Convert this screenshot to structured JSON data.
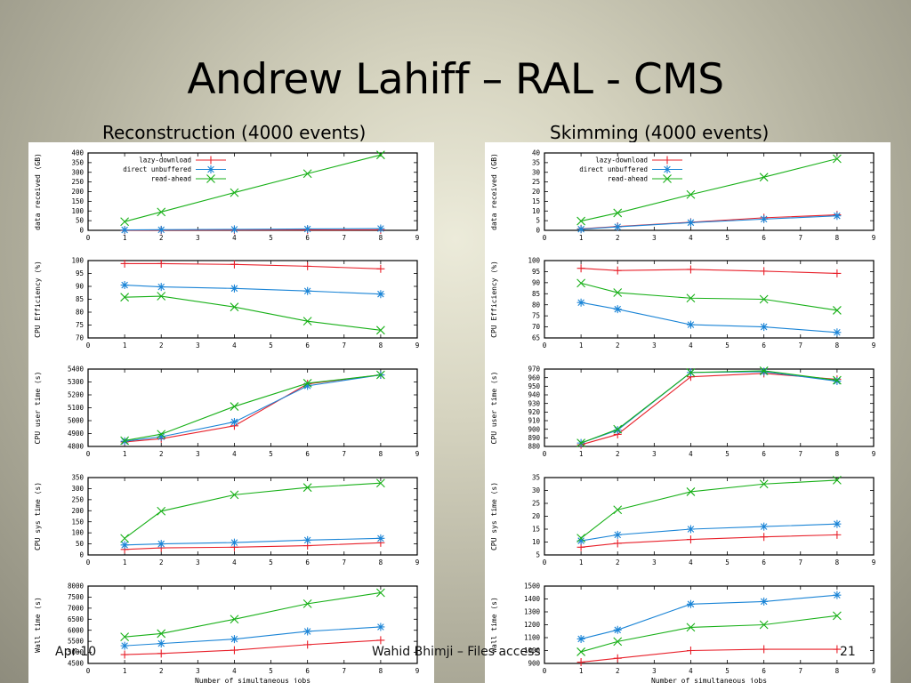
{
  "slide": {
    "title": "Andrew Lahiff – RAL - CMS",
    "subtitle_left": "Reconstruction (4000 events)",
    "subtitle_right": "Skimming (4000 events)",
    "footer_date": "Apr-10",
    "footer_center": "Wahid Bhimji – Files access",
    "footer_page": "21"
  },
  "colors": {
    "lazy_download": "#e8202a",
    "direct_unbuffered": "#1a84d6",
    "read_ahead": "#18b018"
  },
  "chart_data": [
    {
      "type": "line",
      "panel": "left",
      "x": [
        1,
        2,
        4,
        6,
        8
      ],
      "xlim": [
        0,
        9
      ],
      "xticks": [
        0,
        1,
        2,
        3,
        4,
        5,
        6,
        7,
        8,
        9
      ],
      "ylabel": "data received (GB)",
      "ylim": [
        0,
        400
      ],
      "yticks": [
        0,
        50,
        100,
        150,
        200,
        250,
        300,
        350,
        400
      ],
      "legend": "top-left",
      "series": [
        {
          "name": "lazy-download",
          "values": [
            0.3,
            0.6,
            1.2,
            1.8,
            2.4
          ]
        },
        {
          "name": "direct unbuffered",
          "values": [
            2,
            3,
            5,
            7,
            9
          ]
        },
        {
          "name": "read-ahead",
          "values": [
            45,
            95,
            195,
            293,
            390
          ]
        }
      ]
    },
    {
      "type": "line",
      "panel": "left",
      "x": [
        1,
        2,
        4,
        6,
        8
      ],
      "xlim": [
        0,
        9
      ],
      "xticks": [
        0,
        1,
        2,
        3,
        4,
        5,
        6,
        7,
        8,
        9
      ],
      "ylabel": "CPU Efficiency (%)",
      "ylim": [
        70,
        100
      ],
      "yticks": [
        70,
        75,
        80,
        85,
        90,
        95,
        100
      ],
      "series": [
        {
          "name": "lazy-download",
          "values": [
            98.8,
            98.8,
            98.5,
            97.8,
            96.8
          ]
        },
        {
          "name": "direct unbuffered",
          "values": [
            90.5,
            89.8,
            89.2,
            88.2,
            87
          ]
        },
        {
          "name": "read-ahead",
          "values": [
            85.8,
            86.2,
            82,
            76.5,
            73
          ]
        }
      ]
    },
    {
      "type": "line",
      "panel": "left",
      "x": [
        1,
        2,
        4,
        6,
        8
      ],
      "xlim": [
        0,
        9
      ],
      "xticks": [
        0,
        1,
        2,
        3,
        4,
        5,
        6,
        7,
        8,
        9
      ],
      "ylabel": "CPU user time (s)",
      "ylim": [
        4800,
        5400
      ],
      "yticks": [
        4800,
        4900,
        5000,
        5100,
        5200,
        5300,
        5400
      ],
      "series": [
        {
          "name": "lazy-download",
          "values": [
            4835,
            4860,
            4960,
            5285,
            5355
          ]
        },
        {
          "name": "direct unbuffered",
          "values": [
            4840,
            4875,
            4990,
            5270,
            5355
          ]
        },
        {
          "name": "read-ahead",
          "values": [
            4845,
            4895,
            5110,
            5290,
            5355
          ]
        }
      ]
    },
    {
      "type": "line",
      "panel": "left",
      "x": [
        1,
        2,
        4,
        6,
        8
      ],
      "xlim": [
        0,
        9
      ],
      "xticks": [
        0,
        1,
        2,
        3,
        4,
        5,
        6,
        7,
        8,
        9
      ],
      "ylabel": "CPU sys time (s)",
      "ylim": [
        0,
        350
      ],
      "yticks": [
        0,
        50,
        100,
        150,
        200,
        250,
        300,
        350
      ],
      "series": [
        {
          "name": "lazy-download",
          "values": [
            25,
            32,
            35,
            42,
            55
          ]
        },
        {
          "name": "direct unbuffered",
          "values": [
            45,
            50,
            56,
            67,
            75
          ]
        },
        {
          "name": "read-ahead",
          "values": [
            75,
            198,
            272,
            305,
            325
          ]
        }
      ]
    },
    {
      "type": "line",
      "panel": "left",
      "x": [
        1,
        2,
        4,
        6,
        8
      ],
      "xlim": [
        0,
        9
      ],
      "xticks": [
        0,
        1,
        2,
        3,
        4,
        5,
        6,
        7,
        8,
        9
      ],
      "xlabel": "Number of simultaneous jobs",
      "ylabel": "Wall time (s)",
      "ylim": [
        4500,
        8000
      ],
      "yticks": [
        4500,
        5000,
        5500,
        6000,
        6500,
        7000,
        7500,
        8000
      ],
      "series": [
        {
          "name": "lazy-download",
          "values": [
            4900,
            4950,
            5100,
            5350,
            5550
          ]
        },
        {
          "name": "direct unbuffered",
          "values": [
            5300,
            5400,
            5600,
            5950,
            6150
          ]
        },
        {
          "name": "read-ahead",
          "values": [
            5700,
            5850,
            6500,
            7200,
            7700
          ]
        }
      ]
    },
    {
      "type": "line",
      "panel": "right",
      "x": [
        1,
        2,
        4,
        6,
        8
      ],
      "xlim": [
        0,
        9
      ],
      "xticks": [
        0,
        1,
        2,
        3,
        4,
        5,
        6,
        7,
        8,
        9
      ],
      "ylabel": "data received (GB)",
      "ylim": [
        0,
        40
      ],
      "yticks": [
        0,
        5,
        10,
        15,
        20,
        25,
        30,
        35,
        40
      ],
      "legend": "top-left",
      "series": [
        {
          "name": "lazy-download",
          "values": [
            0.8,
            2,
            4.2,
            6.5,
            8
          ]
        },
        {
          "name": "direct unbuffered",
          "values": [
            0.6,
            1.8,
            4,
            5.8,
            7.5
          ]
        },
        {
          "name": "read-ahead",
          "values": [
            4.8,
            9,
            18.5,
            27.5,
            37
          ]
        }
      ]
    },
    {
      "type": "line",
      "panel": "right",
      "x": [
        1,
        2,
        4,
        6,
        8
      ],
      "xlim": [
        0,
        9
      ],
      "xticks": [
        0,
        1,
        2,
        3,
        4,
        5,
        6,
        7,
        8,
        9
      ],
      "ylabel": "CPU Efficiency (%)",
      "ylim": [
        65,
        100
      ],
      "yticks": [
        65,
        70,
        75,
        80,
        85,
        90,
        95,
        100
      ],
      "series": [
        {
          "name": "lazy-download",
          "values": [
            96.5,
            95.5,
            96,
            95.2,
            94.2
          ]
        },
        {
          "name": "direct unbuffered",
          "values": [
            81,
            78,
            71,
            70,
            67.5
          ]
        },
        {
          "name": "read-ahead",
          "values": [
            89.8,
            85.5,
            83,
            82.5,
            77.5
          ]
        }
      ]
    },
    {
      "type": "line",
      "panel": "right",
      "x": [
        1,
        2,
        4,
        6,
        8
      ],
      "xlim": [
        0,
        9
      ],
      "xticks": [
        0,
        1,
        2,
        3,
        4,
        5,
        6,
        7,
        8,
        9
      ],
      "ylabel": "CPU user time (s)",
      "ylim": [
        880,
        970
      ],
      "yticks": [
        880,
        890,
        900,
        910,
        920,
        930,
        940,
        950,
        960,
        970
      ],
      "series": [
        {
          "name": "lazy-download",
          "values": [
            882,
            894,
            961,
            965,
            958
          ]
        },
        {
          "name": "direct unbuffered",
          "values": [
            884,
            899,
            966,
            967,
            956
          ]
        },
        {
          "name": "read-ahead",
          "values": [
            884,
            900,
            966,
            968,
            957
          ]
        }
      ]
    },
    {
      "type": "line",
      "panel": "right",
      "x": [
        1,
        2,
        4,
        6,
        8
      ],
      "xlim": [
        0,
        9
      ],
      "xticks": [
        0,
        1,
        2,
        3,
        4,
        5,
        6,
        7,
        8,
        9
      ],
      "ylabel": "CPU sys time (s)",
      "ylim": [
        5,
        35
      ],
      "yticks": [
        5,
        10,
        15,
        20,
        25,
        30,
        35
      ],
      "series": [
        {
          "name": "lazy-download",
          "values": [
            8,
            9.5,
            11,
            12,
            12.8
          ]
        },
        {
          "name": "direct unbuffered",
          "values": [
            10.5,
            12.8,
            15,
            16,
            17
          ]
        },
        {
          "name": "read-ahead",
          "values": [
            11.5,
            22.5,
            29.5,
            32.5,
            34
          ]
        }
      ]
    },
    {
      "type": "line",
      "panel": "right",
      "x": [
        1,
        2,
        4,
        6,
        8
      ],
      "xlim": [
        0,
        9
      ],
      "xticks": [
        0,
        1,
        2,
        3,
        4,
        5,
        6,
        7,
        8,
        9
      ],
      "xlabel": "Number of simultaneous jobs",
      "ylabel": "Wall time (s)",
      "ylim": [
        900,
        1500
      ],
      "yticks": [
        900,
        1000,
        1100,
        1200,
        1300,
        1400,
        1500
      ],
      "series": [
        {
          "name": "lazy-download",
          "values": [
            910,
            940,
            1000,
            1010,
            1010
          ]
        },
        {
          "name": "direct unbuffered",
          "values": [
            1090,
            1160,
            1360,
            1380,
            1430
          ]
        },
        {
          "name": "read-ahead",
          "values": [
            990,
            1070,
            1180,
            1200,
            1270
          ]
        }
      ]
    }
  ]
}
